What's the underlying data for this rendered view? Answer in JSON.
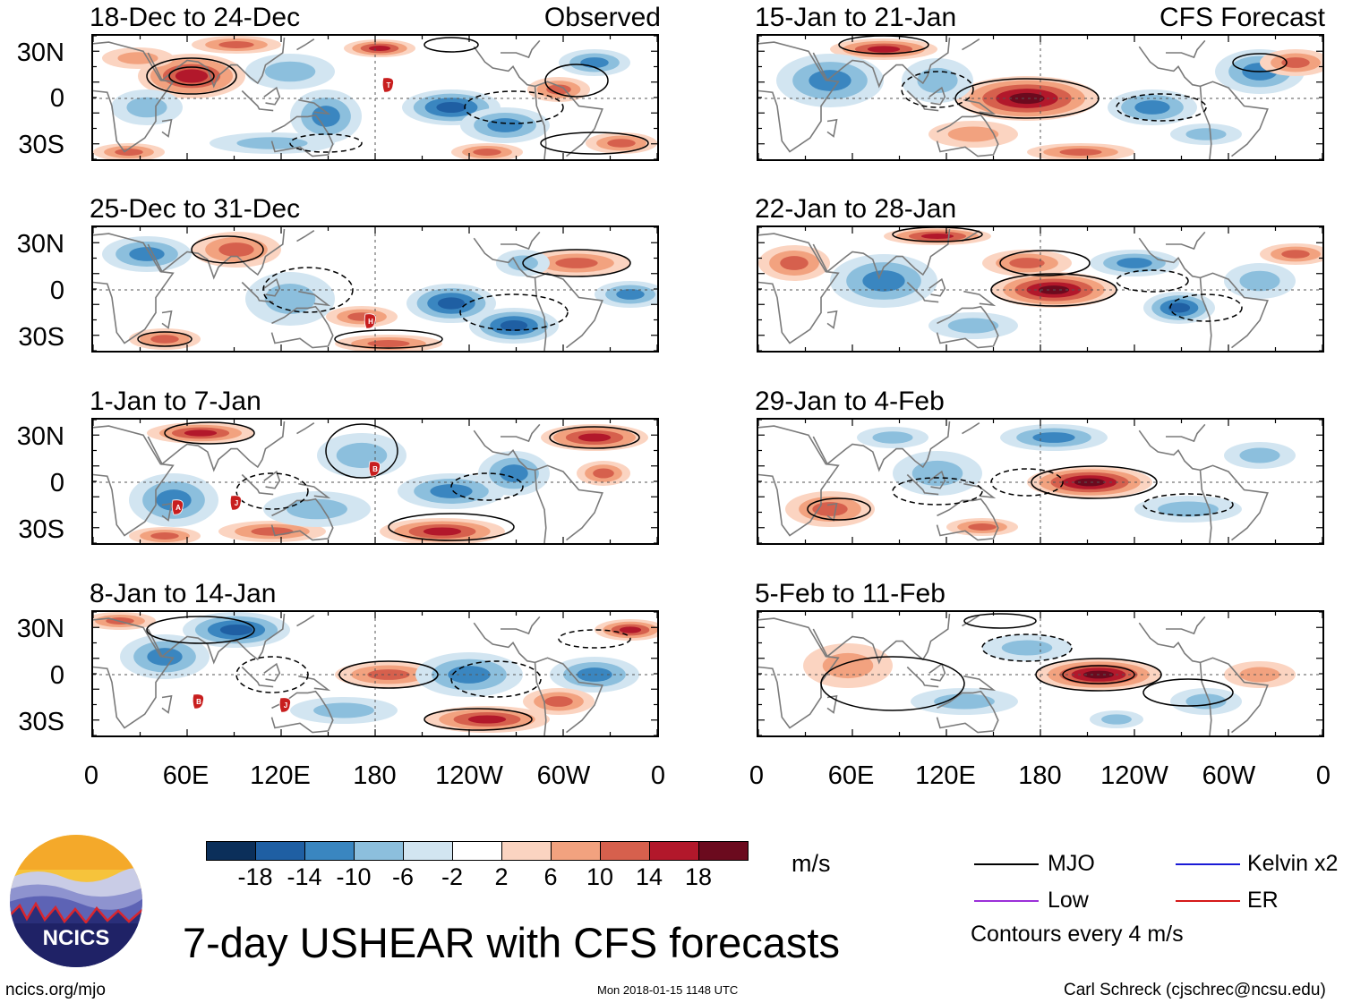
{
  "panels": {
    "observed": [
      {
        "title": "18-Dec to 24-Dec",
        "tag": "Observed"
      },
      {
        "title": "25-Dec to 31-Dec"
      },
      {
        "title": "1-Jan to 7-Jan"
      },
      {
        "title": "8-Jan to 14-Jan"
      }
    ],
    "forecast": [
      {
        "title": "15-Jan to 21-Jan",
        "tag": "CFS Forecast"
      },
      {
        "title": "22-Jan to 28-Jan"
      },
      {
        "title": "29-Jan to 4-Feb"
      },
      {
        "title": "5-Feb to 11-Feb"
      }
    ]
  },
  "axes": {
    "lat_labels": [
      "30N",
      "0",
      "30S"
    ],
    "lon_labels": [
      "0",
      "60E",
      "120E",
      "180",
      "120W",
      "60W",
      "0"
    ]
  },
  "colorbar": {
    "labels": [
      "-18",
      "-14",
      "-10",
      "-6",
      "-2",
      "2",
      "6",
      "10",
      "14",
      "18"
    ],
    "unit": "m/s",
    "colors": [
      "#0b2f5a",
      "#1f5fa3",
      "#3a86c0",
      "#8cbfdd",
      "#d2e5f1",
      "#ffffff",
      "#fbd4c1",
      "#f2a27f",
      "#d6604d",
      "#b2182b",
      "#6b0a1e"
    ]
  },
  "legend": {
    "mjo": "MJO",
    "kelvin": "Kelvin x2",
    "low": "Low",
    "er": "ER",
    "contours": "Contours every 4 m/s",
    "colors": {
      "mjo": "#000000",
      "kelvin": "#1a1ad6",
      "low": "#9b30d9",
      "er": "#d61a1a"
    }
  },
  "storm_markers": {
    "p0": [
      "T"
    ],
    "p1": [
      "H"
    ],
    "p2": [
      "B",
      "A",
      "J"
    ],
    "p3": [
      "B",
      "J"
    ]
  },
  "footer": {
    "title": "7-day USHEAR with CFS forecasts",
    "logo_text": "NCICS",
    "site": "ncics.org/mjo",
    "timestamp": "Mon 2018-01-15 1148 UTC",
    "author": "Carl Schreck (cjschrec@ncsu.edu)"
  }
}
